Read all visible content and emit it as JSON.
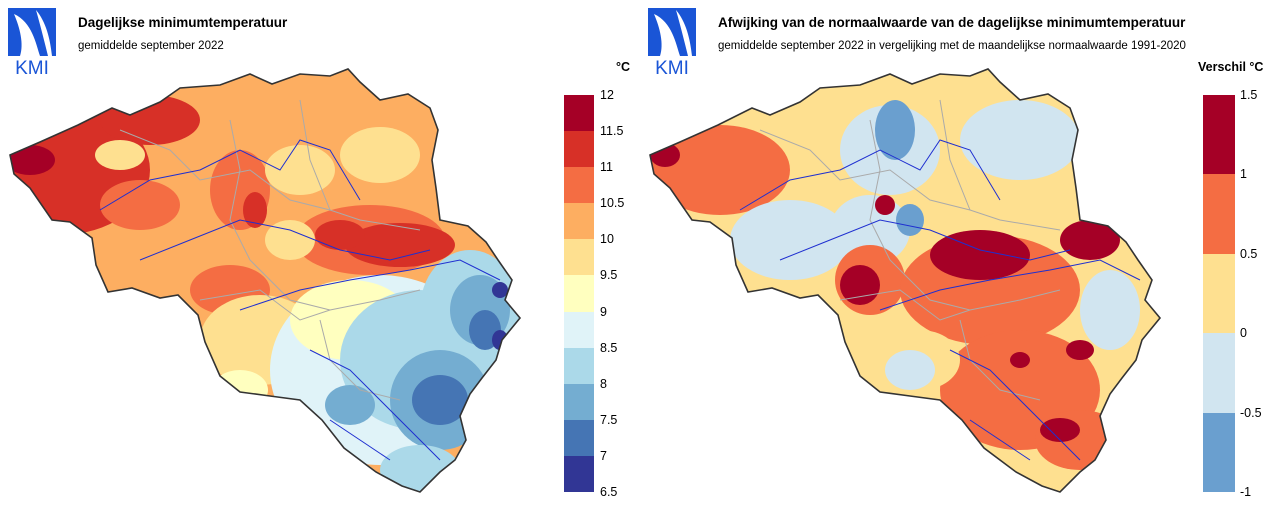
{
  "left": {
    "logo_text": "KMI",
    "title": "Dagelijkse minimumtemperatuur",
    "subtitle": "gemiddelde september 2022",
    "unit": "°C",
    "legend": {
      "colors": [
        "#313695",
        "#4575b4",
        "#74add1",
        "#abd9e9",
        "#e0f3f8",
        "#ffffbf",
        "#fee090",
        "#fdae61",
        "#f46d43",
        "#d73027",
        "#a50026"
      ],
      "ticks": [
        "6.5",
        "7",
        "7.5",
        "8",
        "8.5",
        "9",
        "9.5",
        "10",
        "10.5",
        "11",
        "11.5",
        "12"
      ]
    }
  },
  "right": {
    "logo_text": "KMI",
    "title": "Afwijking van de normaalwaarde van de dagelijkse minimumtemperatuur",
    "subtitle": "gemiddelde september 2022 in vergelijking met de maandelijkse normaalwaarde 1991-2020",
    "unit": "Verschil °C",
    "legend": {
      "colors": [
        "#6a9fcf",
        "#d1e5f0",
        "#fee090",
        "#f46d43",
        "#a50026"
      ],
      "ticks": [
        "-1",
        "-0.5",
        "0",
        "0.5",
        "1",
        "1.5"
      ]
    }
  }
}
